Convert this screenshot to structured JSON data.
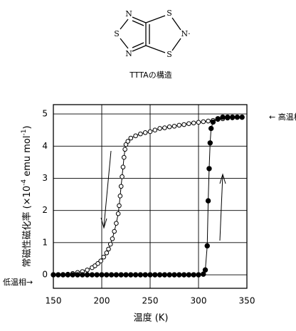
{
  "structure": {
    "atoms": [
      "N",
      "S",
      "N",
      "S",
      "N·",
      "S"
    ],
    "caption": "TTTAの構造"
  },
  "chart_data": {
    "type": "scatter",
    "x_label": "温度 (K)",
    "y_label": [
      "常磁性磁化率 (×10",
      "-4",
      " emu mol",
      "-1",
      ")"
    ],
    "annotations": [
      "← 高温相",
      "低温相→"
    ],
    "xlim": [
      150,
      350
    ],
    "xticks": [
      150,
      200,
      250,
      300,
      350
    ],
    "ylim": [
      -0.42,
      5.29
    ],
    "yticks": [
      0,
      1,
      2,
      3,
      4,
      5
    ],
    "grid": true,
    "series": [
      {
        "color": "#000000",
        "marker": "open",
        "x": [
          155,
          160,
          165,
          170,
          175,
          180,
          185,
          190,
          193,
          196,
          199,
          202,
          205,
          207,
          209,
          211,
          213,
          215,
          217,
          218,
          219,
          220,
          221,
          222,
          223,
          224,
          225,
          227,
          230,
          235,
          240,
          245,
          250,
          255,
          260,
          265,
          270,
          275,
          280,
          285,
          290,
          295,
          300,
          305,
          310,
          315,
          320,
          325,
          330,
          335,
          340,
          345
        ],
        "values": [
          0,
          0.01,
          0.02,
          0.04,
          0.07,
          0.1,
          0.15,
          0.22,
          0.28,
          0.35,
          0.43,
          0.55,
          0.68,
          0.8,
          0.95,
          1.12,
          1.35,
          1.6,
          1.9,
          2.15,
          2.45,
          2.75,
          3.05,
          3.35,
          3.65,
          3.9,
          4.05,
          4.15,
          4.25,
          4.32,
          4.38,
          4.42,
          4.45,
          4.5,
          4.55,
          4.57,
          4.6,
          4.62,
          4.65,
          4.67,
          4.7,
          4.72,
          4.74,
          4.76,
          4.78,
          4.8,
          4.83,
          4.85,
          4.87,
          4.88,
          4.9,
          4.9
        ]
      },
      {
        "color": "#000000",
        "marker": "filled",
        "x": [
          150,
          155,
          160,
          165,
          170,
          175,
          180,
          185,
          190,
          195,
          200,
          205,
          210,
          215,
          220,
          225,
          230,
          235,
          240,
          245,
          250,
          255,
          260,
          265,
          270,
          275,
          280,
          285,
          290,
          295,
          300,
          305,
          307,
          309,
          310,
          311,
          312,
          313,
          315,
          320,
          325,
          330,
          335,
          340,
          345
        ],
        "values": [
          0,
          0,
          0,
          0,
          0,
          0,
          0,
          0,
          0,
          0,
          0,
          0,
          0,
          0,
          0,
          0,
          0,
          0,
          0,
          0,
          0,
          0,
          0,
          0,
          0,
          0,
          0,
          0,
          0,
          0,
          0,
          0.02,
          0.15,
          0.9,
          2.3,
          3.3,
          4.1,
          4.55,
          4.75,
          4.85,
          4.9,
          4.9,
          4.9,
          4.9,
          4.9
        ]
      }
    ]
  }
}
